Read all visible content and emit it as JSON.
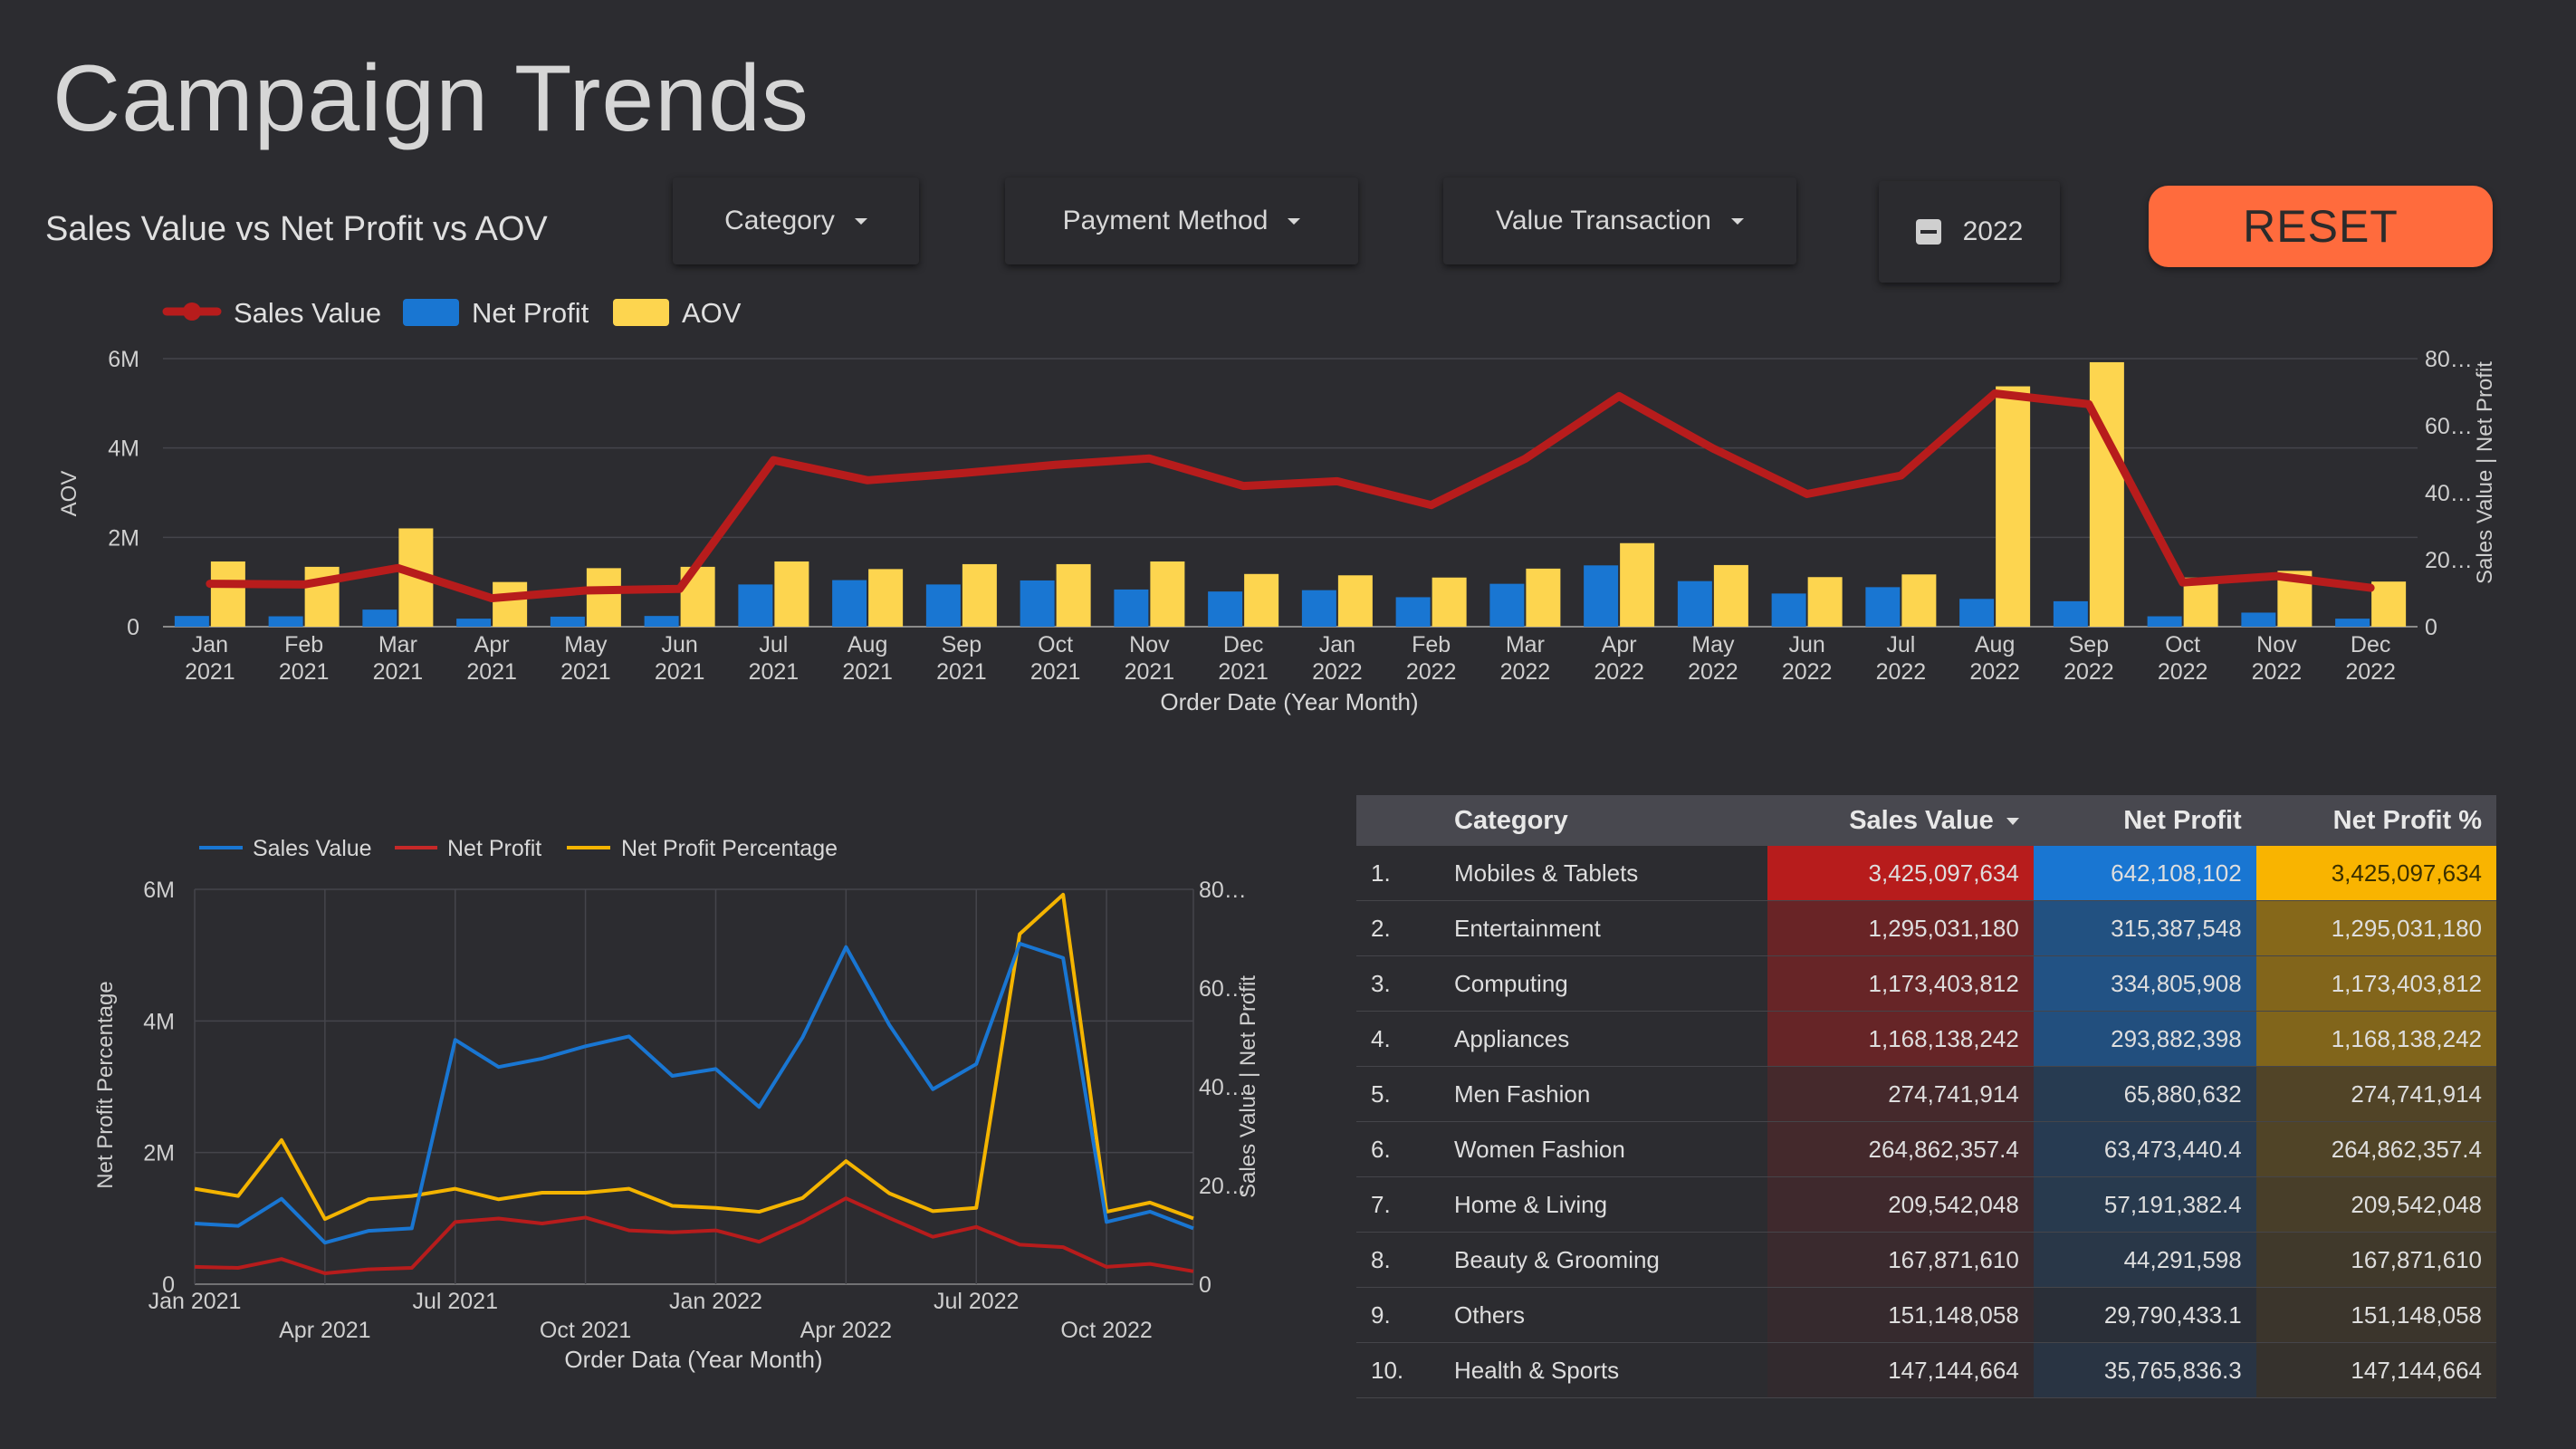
{
  "page": {
    "title": "Campaign Trends",
    "subtitle": "Sales Value vs Net Profit vs AOV"
  },
  "controls": {
    "category": "Category",
    "payment_method": "Payment Method",
    "value_transaction": "Value Transaction",
    "year": "2022",
    "reset": "RESET"
  },
  "colors": {
    "sales_value": "#b71c1c",
    "net_profit": "#1976d2",
    "aov": "#fdd54f",
    "npp_line": "#f4b400",
    "reset": "#ff6b3d",
    "background": "#2c2c30"
  },
  "chart_data": [
    {
      "type": "bar",
      "legend": [
        "Sales Value",
        "Net Profit",
        "AOV"
      ],
      "categories": [
        "Jan 2021",
        "Feb 2021",
        "Mar 2021",
        "Apr 2021",
        "May 2021",
        "Jun 2021",
        "Jul 2021",
        "Aug 2021",
        "Sep 2021",
        "Oct 2021",
        "Nov 2021",
        "Dec 2021",
        "Jan 2022",
        "Feb 2022",
        "Mar 2022",
        "Apr 2022",
        "May 2022",
        "Jun 2022",
        "Jul 2022",
        "Aug 2022",
        "Sep 2022",
        "Oct 2022",
        "Nov 2022",
        "Dec 2022"
      ],
      "category_labels": [
        [
          "Jan",
          "2021"
        ],
        [
          "Feb",
          "2021"
        ],
        [
          "Mar",
          "2021"
        ],
        [
          "Apr",
          "2021"
        ],
        [
          "May",
          "2021"
        ],
        [
          "Jun",
          "2021"
        ],
        [
          "Jul",
          "2021"
        ],
        [
          "Aug",
          "2021"
        ],
        [
          "Sep",
          "2021"
        ],
        [
          "Oct",
          "2021"
        ],
        [
          "Nov",
          "2021"
        ],
        [
          "Dec",
          "2021"
        ],
        [
          "Jan",
          "2022"
        ],
        [
          "Feb",
          "2022"
        ],
        [
          "Mar",
          "2022"
        ],
        [
          "Apr",
          "2022"
        ],
        [
          "May",
          "2022"
        ],
        [
          "Jun",
          "2022"
        ],
        [
          "Jul",
          "2022"
        ],
        [
          "Aug",
          "2022"
        ],
        [
          "Sep",
          "2022"
        ],
        [
          "Oct",
          "2022"
        ],
        [
          "Nov",
          "2022"
        ],
        [
          "Dec",
          "2022"
        ]
      ],
      "series": [
        {
          "name": "Sales Value",
          "render": "line",
          "axis": "right",
          "values": [
            12.8,
            12.6,
            17.5,
            8.5,
            10.8,
            11.3,
            49.7,
            43.7,
            45.8,
            48.3,
            50.2,
            42.0,
            43.4,
            36.3,
            50.1,
            68.8,
            53.2,
            39.6,
            45.1,
            69.6,
            66.4,
            13.2,
            15.1,
            11.6
          ]
        },
        {
          "name": "Net Profit",
          "render": "bar",
          "axis": "right",
          "values": [
            3.2,
            3.1,
            5.1,
            2.4,
            3.0,
            3.2,
            12.6,
            13.9,
            12.6,
            13.8,
            11.1,
            10.5,
            10.9,
            8.8,
            12.8,
            18.3,
            13.6,
            9.9,
            11.8,
            8.3,
            7.6,
            3.1,
            4.2,
            2.4
          ]
        },
        {
          "name": "AOV",
          "render": "bar",
          "axis": "left",
          "values": [
            1460000,
            1340000,
            2200000,
            1000000,
            1310000,
            1340000,
            1460000,
            1290000,
            1400000,
            1400000,
            1460000,
            1180000,
            1150000,
            1100000,
            1300000,
            1870000,
            1380000,
            1110000,
            1170000,
            5380000,
            5920000,
            1100000,
            1250000,
            1010000
          ]
        }
      ],
      "ylabel_left": "AOV",
      "ylabel_right": "Sales Value | Net Profit",
      "xlabel": "Order Date (Year Month)",
      "yticks_left": [
        "0",
        "2M",
        "4M",
        "6M"
      ],
      "ylim_left": [
        0,
        6000000
      ],
      "yticks_right": [
        "0",
        "20…",
        "40…",
        "60…",
        "80…"
      ],
      "ylim_right": [
        0,
        80
      ]
    },
    {
      "type": "line",
      "legend": [
        "Sales Value",
        "Net Profit",
        "Net Profit Percentage"
      ],
      "x": [
        "Jan 2021",
        "Feb 2021",
        "Mar 2021",
        "Apr 2021",
        "May 2021",
        "Jun 2021",
        "Jul 2021",
        "Aug 2021",
        "Sep 2021",
        "Oct 2021",
        "Nov 2021",
        "Dec 2021",
        "Jan 2022",
        "Feb 2022",
        "Mar 2022",
        "Apr 2022",
        "May 2022",
        "Jun 2022",
        "Jul 2022",
        "Aug 2022",
        "Sep 2022",
        "Oct 2022",
        "Nov 2022",
        "Dec 2022"
      ],
      "series": [
        {
          "name": "Sales Value",
          "axis": "right",
          "values": [
            12.3,
            11.8,
            17.3,
            8.4,
            10.8,
            11.3,
            49.5,
            44.0,
            45.7,
            48.2,
            50.2,
            42.2,
            43.6,
            35.9,
            50.0,
            68.3,
            52.5,
            39.5,
            44.6,
            69.0,
            66.1,
            12.6,
            14.7,
            11.3
          ]
        },
        {
          "name": "Net Profit",
          "axis": "right",
          "values": [
            3.5,
            3.3,
            5.1,
            2.2,
            3.0,
            3.3,
            12.6,
            13.3,
            12.3,
            13.5,
            10.9,
            10.5,
            10.9,
            8.6,
            12.6,
            17.4,
            13.4,
            9.6,
            11.6,
            8.0,
            7.5,
            3.5,
            4.1,
            2.6
          ]
        },
        {
          "name": "Net Profit Percentage",
          "axis": "left",
          "values": [
            1450000,
            1340000,
            2190000,
            990000,
            1290000,
            1340000,
            1450000,
            1290000,
            1390000,
            1390000,
            1450000,
            1190000,
            1160000,
            1100000,
            1310000,
            1870000,
            1380000,
            1110000,
            1160000,
            5320000,
            5920000,
            1100000,
            1240000,
            1000000
          ]
        }
      ],
      "ylabel_left": "Net Profit Percentage",
      "ylabel_right": "Sales Value | Net Profit",
      "xlabel": "Order Data (Year Month)",
      "xticks_row1": [
        "Jan 2021",
        "Jul 2021",
        "Jan 2022",
        "Jul 2022"
      ],
      "xticks_row2": [
        "Apr 2021",
        "Oct 2021",
        "Apr 2022",
        "Oct 2022"
      ],
      "yticks_left": [
        "0",
        "2M",
        "4M",
        "6M"
      ],
      "ylim_left": [
        0,
        6000000
      ],
      "yticks_right": [
        "0",
        "20…",
        "40…",
        "60…",
        "80…"
      ],
      "ylim_right": [
        0,
        80
      ]
    },
    {
      "type": "table",
      "columns": [
        "Category",
        "Sales Value",
        "Net Profit",
        "Net Profit %"
      ],
      "rows": [
        {
          "idx": "1.",
          "category": "Mobiles & Tablets",
          "sales": "3,425,097,634",
          "profit": "642,108,102",
          "pct": "3,425,097,634",
          "sales_raw": 3425097634,
          "profit_raw": 642108102
        },
        {
          "idx": "2.",
          "category": "Entertainment",
          "sales": "1,295,031,180",
          "profit": "315,387,548",
          "pct": "1,295,031,180",
          "sales_raw": 1295031180,
          "profit_raw": 315387548
        },
        {
          "idx": "3.",
          "category": "Computing",
          "sales": "1,173,403,812",
          "profit": "334,805,908",
          "pct": "1,173,403,812",
          "sales_raw": 1173403812,
          "profit_raw": 334805908
        },
        {
          "idx": "4.",
          "category": "Appliances",
          "sales": "1,168,138,242",
          "profit": "293,882,398",
          "pct": "1,168,138,242",
          "sales_raw": 1168138242,
          "profit_raw": 293882398
        },
        {
          "idx": "5.",
          "category": "Men Fashion",
          "sales": "274,741,914",
          "profit": "65,880,632",
          "pct": "274,741,914",
          "sales_raw": 274741914,
          "profit_raw": 65880632
        },
        {
          "idx": "6.",
          "category": "Women Fashion",
          "sales": "264,862,357.4",
          "profit": "63,473,440.4",
          "pct": "264,862,357.4",
          "sales_raw": 264862357.4,
          "profit_raw": 63473440.4
        },
        {
          "idx": "7.",
          "category": "Home & Living",
          "sales": "209,542,048",
          "profit": "57,191,382.4",
          "pct": "209,542,048",
          "sales_raw": 209542048,
          "profit_raw": 57191382.4
        },
        {
          "idx": "8.",
          "category": "Beauty & Grooming",
          "sales": "167,871,610",
          "profit": "44,291,598",
          "pct": "167,871,610",
          "sales_raw": 167871610,
          "profit_raw": 44291598
        },
        {
          "idx": "9.",
          "category": "Others",
          "sales": "151,148,058",
          "profit": "29,790,433.1",
          "pct": "151,148,058",
          "sales_raw": 151148058,
          "profit_raw": 29790433.1
        },
        {
          "idx": "10.",
          "category": "Health & Sports",
          "sales": "147,144,664",
          "profit": "35,765,836.3",
          "pct": "147,144,664",
          "sales_raw": 147144664,
          "profit_raw": 35765836.3
        }
      ]
    }
  ]
}
